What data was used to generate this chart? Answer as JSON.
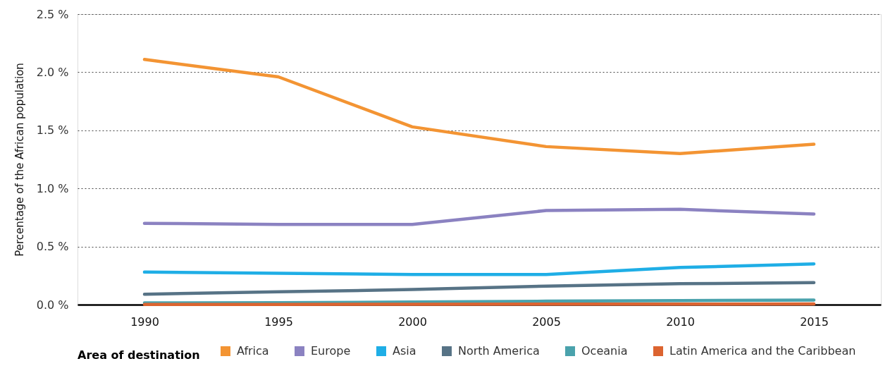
{
  "chart_data": {
    "type": "line",
    "ylabel": "Percentage of the African population",
    "legend_title": "Area of destination",
    "categories": [
      "1990",
      "1995",
      "2000",
      "2005",
      "2010",
      "2015"
    ],
    "ylim": [
      0,
      2.5
    ],
    "yticks": [
      {
        "value": 0,
        "label": "0.0 %"
      },
      {
        "value": 0.5,
        "label": "0.5 %"
      },
      {
        "value": 1.0,
        "label": "1.0 %"
      },
      {
        "value": 1.5,
        "label": "1.5 %"
      },
      {
        "value": 2.0,
        "label": "2.0 %"
      },
      {
        "value": 2.5,
        "label": "2.5 %"
      }
    ],
    "grid": "y",
    "legend": "bottom",
    "line_style": "solid",
    "series": [
      {
        "name": "Africa",
        "color": "#f39433",
        "values": [
          2.11,
          1.96,
          1.53,
          1.36,
          1.3,
          1.38
        ]
      },
      {
        "name": "Europe",
        "color": "#8b82c1",
        "values": [
          0.7,
          0.69,
          0.69,
          0.81,
          0.82,
          0.78
        ]
      },
      {
        "name": "Asia",
        "color": "#1faee6",
        "values": [
          0.28,
          0.27,
          0.26,
          0.26,
          0.32,
          0.35
        ]
      },
      {
        "name": "North America",
        "color": "#577386",
        "values": [
          0.09,
          0.11,
          0.13,
          0.16,
          0.18,
          0.19
        ]
      },
      {
        "name": "Oceania",
        "color": "#4aa2ac",
        "values": [
          0.015,
          0.017,
          0.022,
          0.03,
          0.035,
          0.04
        ]
      },
      {
        "name": "Latin America and the Caribbean",
        "color": "#dc6430",
        "values": [
          0.002,
          0.002,
          0.003,
          0.004,
          0.005,
          0.006
        ]
      }
    ]
  }
}
